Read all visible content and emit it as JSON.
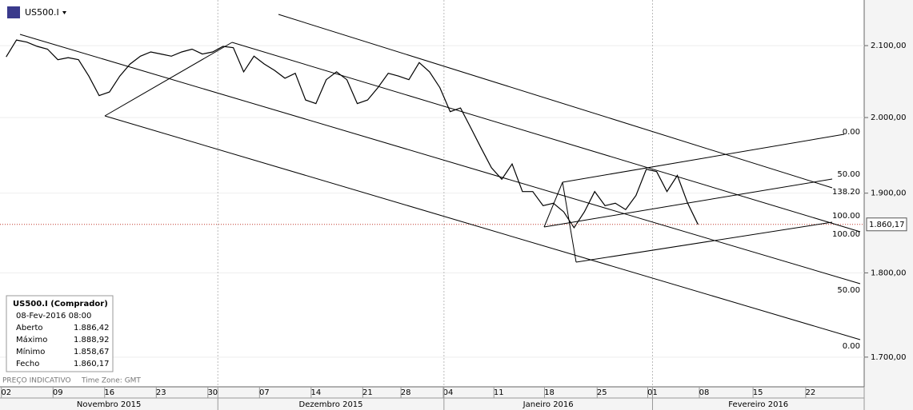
{
  "chart_data": {
    "type": "line",
    "symbol": "US500.I",
    "color": "#000000",
    "log_scale": true,
    "grid": true,
    "x": [
      0,
      1,
      2,
      3,
      4,
      5,
      6,
      7,
      8,
      9,
      10,
      11,
      12,
      13,
      14,
      15,
      16,
      17,
      18,
      19,
      20,
      21,
      22,
      23,
      24,
      25,
      26,
      27,
      28,
      29,
      30,
      31,
      32,
      33,
      34,
      35,
      36,
      37,
      38,
      39,
      40,
      41,
      42,
      43,
      44,
      45,
      46,
      47,
      48,
      49,
      50,
      51,
      52,
      53,
      54,
      55,
      56,
      57,
      58,
      59,
      60,
      61,
      62,
      63,
      64,
      65,
      66,
      67
    ],
    "values": [
      2084,
      2108,
      2105,
      2099,
      2095,
      2080,
      2083,
      2080,
      2057,
      2030,
      2035,
      2057,
      2074,
      2085,
      2091,
      2088,
      2085,
      2091,
      2095,
      2088,
      2091,
      2099,
      2097,
      2063,
      2085,
      2074,
      2065,
      2054,
      2061,
      2024,
      2019,
      2052,
      2063,
      2052,
      2019,
      2024,
      2041,
      2061,
      2057,
      2052,
      2076,
      2063,
      2041,
      2008,
      2013,
      1986,
      1959,
      1933,
      1918,
      1938,
      1902,
      1902,
      1884,
      1887,
      1876,
      1856,
      1876,
      1902,
      1884,
      1887,
      1879,
      1897,
      1931,
      1928,
      1902,
      1923,
      1887,
      1860.17
    ],
    "xlim": [
      -0.6,
      83.1
    ],
    "xticks": [
      {
        "value": 0,
        "label": "02"
      },
      {
        "value": 5,
        "label": "09"
      },
      {
        "value": 10,
        "label": "16"
      },
      {
        "value": 15,
        "label": "23"
      },
      {
        "value": 20,
        "label": "30"
      },
      {
        "value": 25,
        "label": "07"
      },
      {
        "value": 30,
        "label": "14"
      },
      {
        "value": 35,
        "label": "21"
      },
      {
        "value": 38.7,
        "label": "28"
      },
      {
        "value": 42.8,
        "label": "04"
      },
      {
        "value": 47.7,
        "label": "11"
      },
      {
        "value": 52.6,
        "label": "18"
      },
      {
        "value": 57.7,
        "label": "25"
      },
      {
        "value": 62.6,
        "label": "01"
      },
      {
        "value": 67.6,
        "label": "08"
      },
      {
        "value": 72.8,
        "label": "15"
      },
      {
        "value": 77.9,
        "label": "22"
      }
    ],
    "months": [
      {
        "label": "Novembro 2015",
        "from": -0.6,
        "to": 20.5
      },
      {
        "label": "Dezembro 2015",
        "from": 20.5,
        "to": 42.4
      },
      {
        "label": "Janeiro 2016",
        "from": 42.4,
        "to": 62.6
      },
      {
        "label": "Fevereiro 2016",
        "from": 62.6,
        "to": 83.1
      }
    ],
    "ylim": [
      1667,
      2166
    ],
    "yticks": [
      {
        "value": 1700,
        "label": "1.700,00"
      },
      {
        "value": 1800,
        "label": "1.800,00"
      },
      {
        "value": 1900,
        "label": "1.900,00"
      },
      {
        "value": 2000,
        "label": "2.000,00"
      },
      {
        "value": 2100,
        "label": "2.100,00"
      }
    ],
    "last_price": {
      "value": 1860.17,
      "label": "1.860,17"
    },
    "fib_labels": [
      "0.00",
      "50.00",
      "138.20",
      "100.00",
      "100.00",
      "50.00",
      "0.00"
    ],
    "info_box": {
      "title": "US500.I (Comprador)",
      "datetime": "08-Fev-2016 08:00",
      "rows": [
        [
          "Aberto",
          "1.886,42"
        ],
        [
          "Máximo",
          "1.888,92"
        ],
        [
          "Mínimo",
          "1.858,67"
        ],
        [
          "Fecho",
          "1.860,17"
        ]
      ]
    },
    "footer": {
      "note": "PREÇO INDICATIVO",
      "timezone": "Time Zone: GMT"
    }
  }
}
